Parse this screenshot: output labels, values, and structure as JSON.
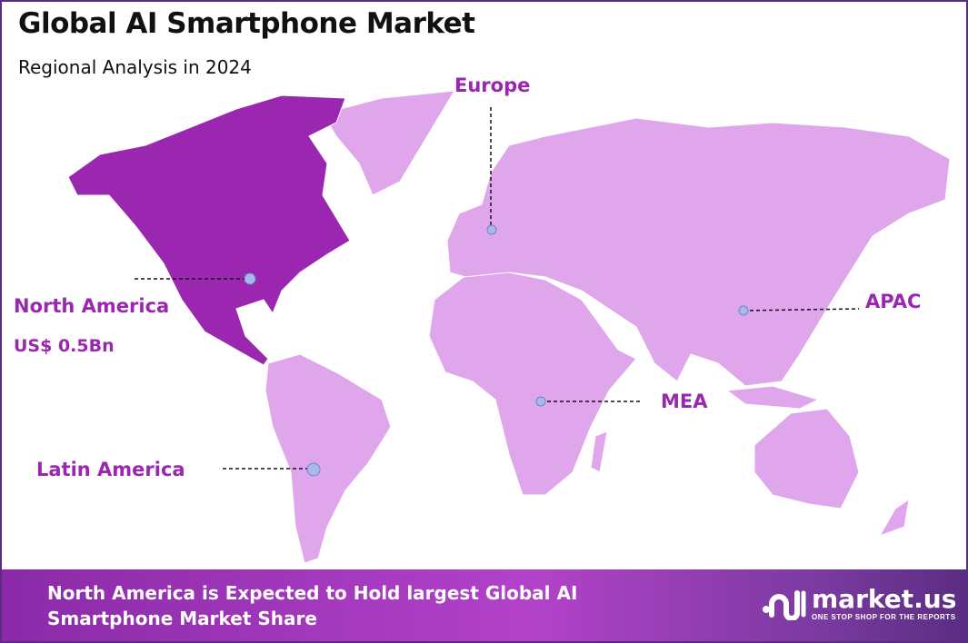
{
  "header": {
    "title": "Global AI Smartphone Market",
    "subtitle": "Regional Analysis in 2024"
  },
  "colors": {
    "highlight": "#9b27b0",
    "land": "#e0a6ec",
    "marker": "#a8b8e8",
    "border": "#5a2d82"
  },
  "regions": [
    {
      "name": "North America",
      "value": "US$ 0.5Bn",
      "highlighted": true
    },
    {
      "name": "Europe"
    },
    {
      "name": "APAC"
    },
    {
      "name": "MEA"
    },
    {
      "name": "Latin America"
    }
  ],
  "footer": {
    "text": "North America is Expected to Hold largest Global AI Smartphone Market Share"
  },
  "logo": {
    "name": "market.us",
    "tagline": "ONE STOP SHOP FOR THE REPORTS"
  }
}
